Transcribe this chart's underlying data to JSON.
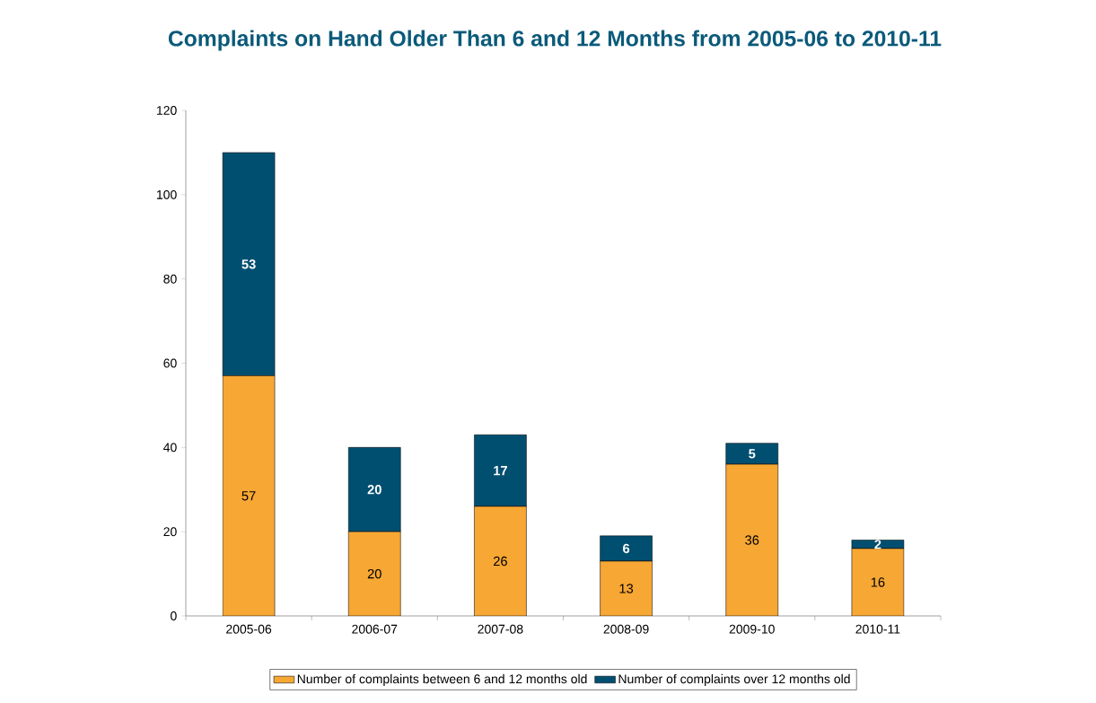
{
  "chart_data": {
    "type": "bar",
    "title": "Complaints on Hand Older Than 6 and 12 Months from 2005-06 to 2010-11",
    "categories": [
      "2005-06",
      "2006-07",
      "2007-08",
      "2008-09",
      "2009-10",
      "2010-11"
    ],
    "series": [
      {
        "name": "Number of complaints between 6 and 12 months old",
        "color": "#f7a733",
        "values": [
          57,
          20,
          26,
          13,
          36,
          16
        ]
      },
      {
        "name": "Number of complaints over 12 months old",
        "color": "#004f71",
        "values": [
          53,
          20,
          17,
          6,
          5,
          2
        ]
      }
    ],
    "stacked": true,
    "ylim": [
      0,
      120
    ],
    "yticks": [
      0,
      20,
      40,
      60,
      80,
      100,
      120
    ],
    "grid": false,
    "legend": "bottom",
    "data_labels": true
  }
}
